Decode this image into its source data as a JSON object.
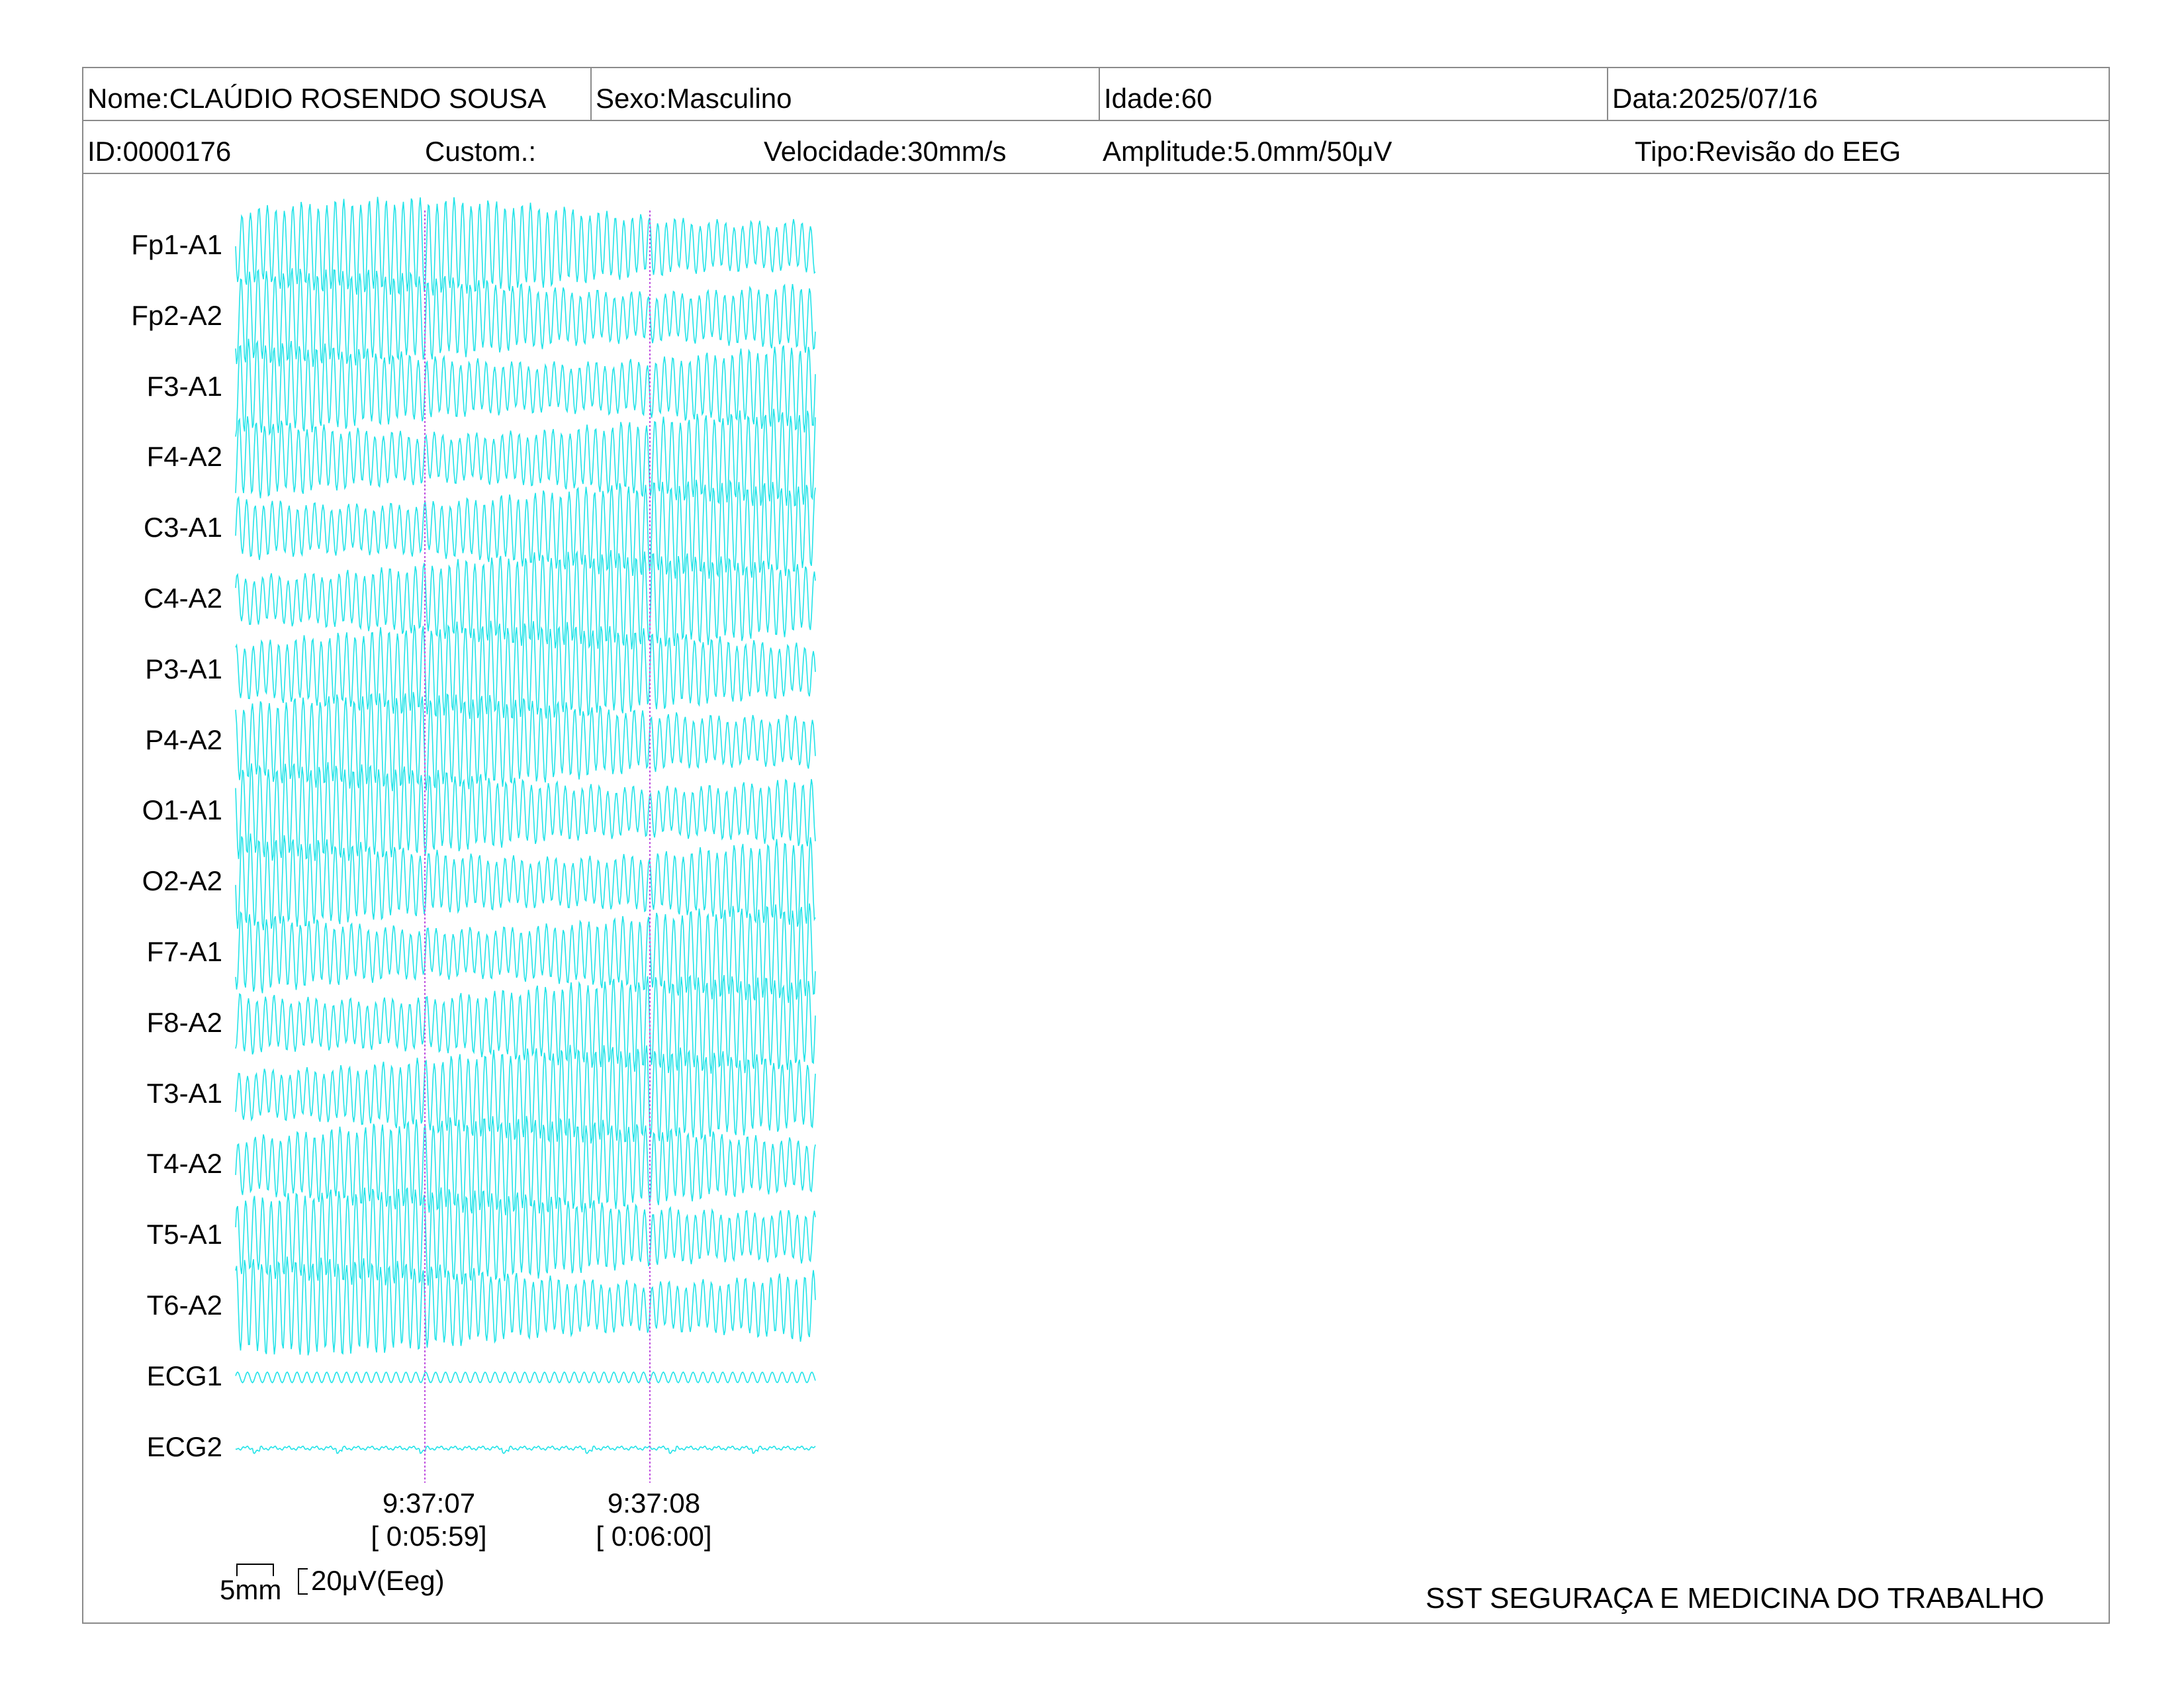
{
  "header": {
    "name": "Nome:CLAÚDIO ROSENDO SOUSA",
    "sex": "Sexo:Masculino",
    "age": "Idade:60",
    "date": "Data:2025/07/16",
    "id": "ID:0000176",
    "custom": "Custom.:",
    "speed": "Velocidade:30mm/s",
    "amplitude": "Amplitude:5.0mm/50μV",
    "type": "Tipo:Revisão do EEG"
  },
  "chart_data": {
    "type": "line",
    "channels": [
      "Fp1-A1",
      "Fp2-A2",
      "F3-A1",
      "F4-A2",
      "C3-A1",
      "C4-A2",
      "P3-A1",
      "P4-A2",
      "O1-A1",
      "O2-A2",
      "F7-A1",
      "F8-A2",
      "T3-A1",
      "T4-A2",
      "T5-A1",
      "T6-A2",
      "ECG1",
      "ECG2"
    ],
    "trace_color": "#22e3e8",
    "marker_color": "#c050e0",
    "time_markers": [
      {
        "time": "9:37:07",
        "elapsed": "[ 0:05:59]"
      },
      {
        "time": "9:37:08",
        "elapsed": "[ 0:06:00]"
      }
    ],
    "scale": {
      "horizontal": "5mm",
      "vertical": "20μV(Eeg)"
    }
  },
  "footer": {
    "company": "SST SEGURAÇA E MEDICINA DO TRABALHO"
  }
}
